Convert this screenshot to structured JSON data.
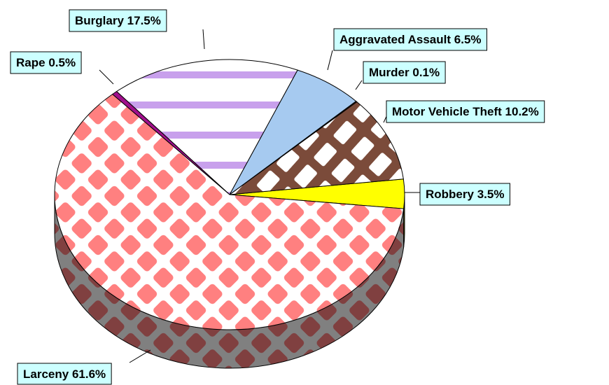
{
  "chart_data": {
    "type": "pie3d",
    "categories": [
      "Robbery",
      "Motor Vehicle Theft",
      "Murder",
      "Aggravated Assault",
      "Burglary",
      "Rape",
      "Larceny"
    ],
    "values": [
      3.5,
      10.2,
      0.1,
      6.5,
      17.5,
      0.5,
      61.6
    ],
    "value_labels": [
      "3.5%",
      "10.2%",
      "0.1%",
      "6.5%",
      "17.5%",
      "0.5%",
      "61.6%"
    ],
    "colors": [
      "#ffff00",
      "#7b4b3a",
      "#6b3a2a",
      "#a6caf0",
      "#c8a0ec",
      "#a0108c",
      "#ff8080"
    ]
  }
}
